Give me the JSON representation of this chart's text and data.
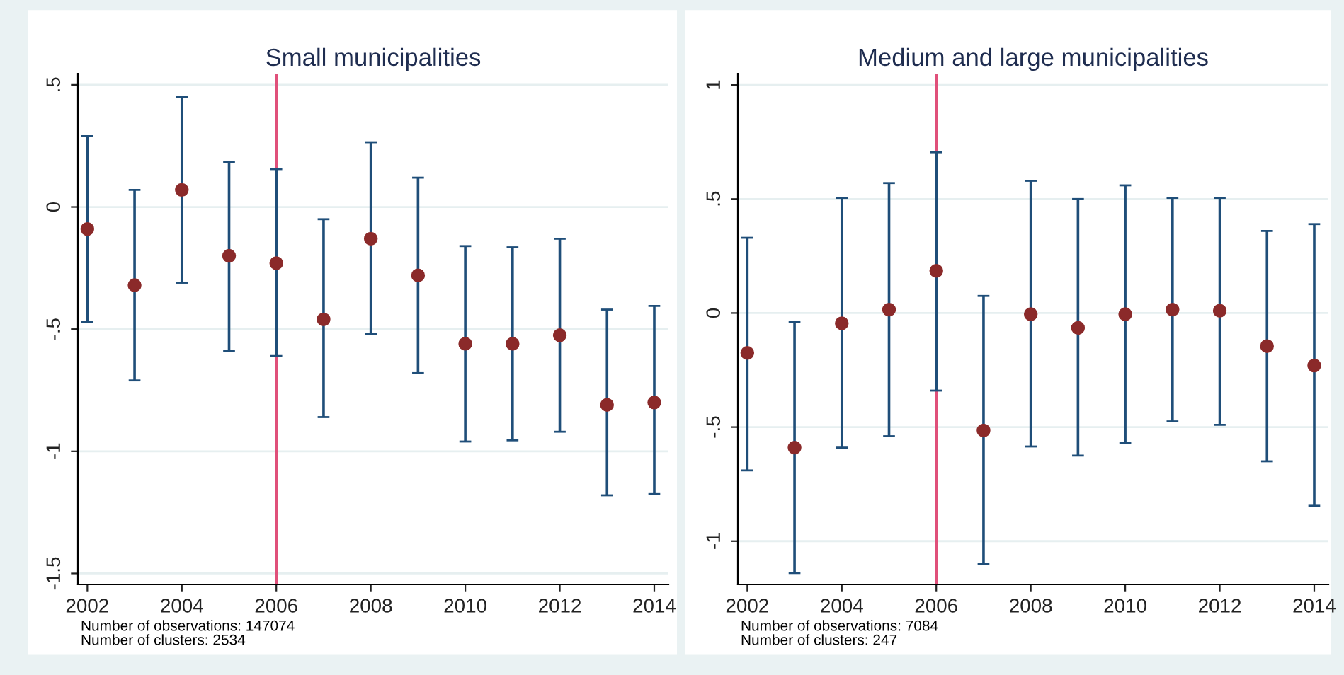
{
  "chart_data": [
    {
      "type": "scatter",
      "title": "Small municipalities",
      "x": [
        2002,
        2003,
        2004,
        2005,
        2006,
        2007,
        2008,
        2009,
        2010,
        2011,
        2012,
        2013,
        2014
      ],
      "values": [
        -0.09,
        -0.32,
        0.07,
        -0.2,
        -0.23,
        -0.46,
        -0.13,
        -0.28,
        -0.56,
        -0.56,
        -0.525,
        -0.81,
        -0.8
      ],
      "errors": [
        [
          -0.47,
          0.29
        ],
        [
          -0.71,
          0.07
        ],
        [
          -0.31,
          0.45
        ],
        [
          -0.59,
          0.185
        ],
        [
          -0.61,
          0.155
        ],
        [
          -0.86,
          -0.05
        ],
        [
          -0.52,
          0.265
        ],
        [
          -0.68,
          0.12
        ],
        [
          -0.96,
          -0.16
        ],
        [
          -0.955,
          -0.165
        ],
        [
          -0.92,
          -0.13
        ],
        [
          -1.18,
          -0.42
        ],
        [
          -1.175,
          -0.405
        ]
      ],
      "color": "#8b2a2a",
      "marker": "circle",
      "xlim": [
        2001.8,
        2014.3
      ],
      "xticks": [
        2002,
        2004,
        2006,
        2008,
        2010,
        2012,
        2014
      ],
      "ylim": [
        -1.545,
        0.546
      ],
      "yticks": [
        {
          "value": -1.5,
          "label": "-1.5"
        },
        {
          "value": -1,
          "label": "-1"
        },
        {
          "value": -0.5,
          "label": "-.5"
        },
        {
          "value": 0,
          "label": "0"
        },
        {
          "value": 0.5,
          "label": ".5"
        }
      ],
      "grid": "y",
      "ref_lines": [
        {
          "axis": "x",
          "value": 2006,
          "color": "#e0507a"
        }
      ],
      "annotations": [
        "Number of observations: 147074",
        "Number of clusters: 2534"
      ]
    },
    {
      "type": "scatter",
      "title": "Medium and large municipalities",
      "x": [
        2002,
        2003,
        2004,
        2005,
        2006,
        2007,
        2008,
        2009,
        2010,
        2011,
        2012,
        2013,
        2014
      ],
      "values": [
        -0.175,
        -0.59,
        -0.045,
        0.015,
        0.185,
        -0.515,
        -0.005,
        -0.065,
        -0.005,
        0.015,
        0.01,
        -0.145,
        -0.23
      ],
      "errors": [
        [
          -0.69,
          0.33
        ],
        [
          -1.14,
          -0.04
        ],
        [
          -0.59,
          0.505
        ],
        [
          -0.54,
          0.57
        ],
        [
          -0.34,
          0.705
        ],
        [
          -1.1,
          0.075
        ],
        [
          -0.585,
          0.58
        ],
        [
          -0.625,
          0.5
        ],
        [
          -0.57,
          0.56
        ],
        [
          -0.475,
          0.505
        ],
        [
          -0.49,
          0.505
        ],
        [
          -0.65,
          0.36
        ],
        [
          -0.845,
          0.39
        ]
      ],
      "color": "#8b2a2a",
      "marker": "circle",
      "xlim": [
        2001.8,
        2014.3
      ],
      "xticks": [
        2002,
        2004,
        2006,
        2008,
        2010,
        2012,
        2014
      ],
      "ylim": [
        -1.19,
        1.05
      ],
      "yticks": [
        {
          "value": -1,
          "label": "-1"
        },
        {
          "value": -0.5,
          "label": "-.5"
        },
        {
          "value": 0,
          "label": "0"
        },
        {
          "value": 0.5,
          "label": ".5"
        },
        {
          "value": 1,
          "label": "1"
        }
      ],
      "grid": "y",
      "ref_lines": [
        {
          "axis": "x",
          "value": 2006,
          "color": "#e0507a"
        }
      ],
      "annotations": [
        "Number of observations: 7084",
        "Number of clusters: 247"
      ]
    }
  ]
}
